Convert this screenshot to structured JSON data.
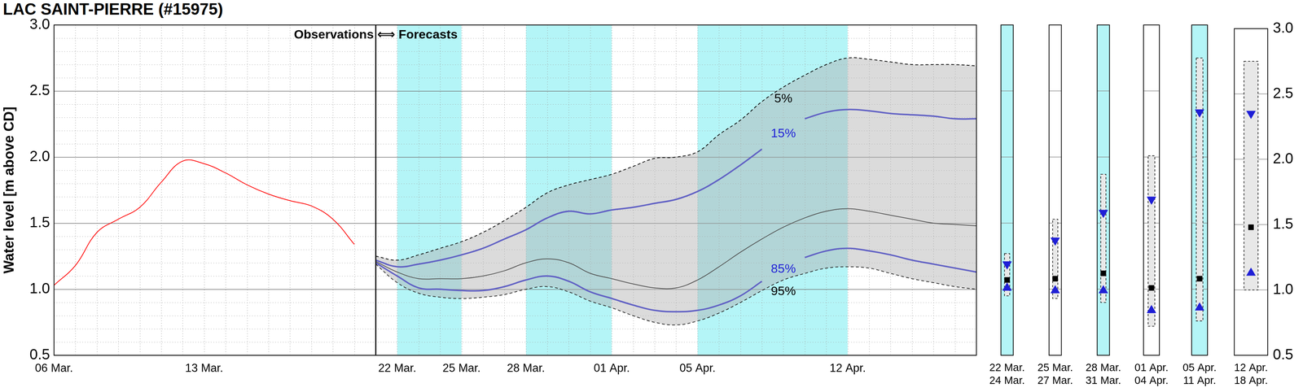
{
  "chart_data": [
    {
      "type": "line",
      "title": "LAC SAINT-PIERRE (#15975)",
      "y_label": "Water level [m above CD]",
      "annotations": [
        "Observations ⟺ Forecasts"
      ],
      "categories": [
        "06 Mar.",
        null,
        null,
        null,
        null,
        null,
        null,
        "13 Mar.",
        null,
        null,
        null,
        null,
        null,
        null,
        null,
        null,
        "22 Mar.",
        null,
        null,
        "25 Mar.",
        null,
        null,
        "28 Mar.",
        null,
        null,
        null,
        "01 Apr.",
        null,
        null,
        null,
        "05 Apr.",
        null,
        null,
        null,
        null,
        null,
        null,
        "12 Apr.",
        null,
        null,
        null,
        null,
        null,
        null
      ],
      "ylim": [
        0.5,
        3
      ],
      "yticks": [
        0.5,
        {
          "value": 1,
          "label": "1.0"
        },
        1.5,
        {
          "value": 2,
          "label": "2.0"
        },
        2.5,
        {
          "value": 3,
          "label": "3.0"
        }
      ],
      "grid": true,
      "series": [
        {
          "color": "#ff0000",
          "line_style": "solid",
          "values": [
            1.03,
            1.18,
            1.43,
            1.53,
            1.62,
            1.81,
            1.97,
            1.95,
            1.88,
            1.79,
            1.72,
            1.67,
            1.63,
            1.53,
            1.34,
            null,
            null,
            null,
            null,
            null,
            null,
            null,
            null,
            null,
            null,
            null,
            null,
            null,
            null,
            null,
            null,
            null,
            null,
            null,
            null,
            null,
            null,
            null,
            null,
            null,
            null,
            null,
            null,
            null
          ]
        },
        {
          "name": "5%",
          "color": "#000000",
          "line_style": "dashed",
          "values": [
            null,
            null,
            null,
            null,
            null,
            null,
            null,
            null,
            null,
            null,
            null,
            null,
            null,
            null,
            null,
            1.25,
            1.22,
            1.26,
            1.31,
            1.36,
            1.43,
            1.52,
            1.62,
            1.73,
            1.79,
            1.83,
            1.87,
            1.93,
            1.99,
            2.0,
            2.04,
            2.17,
            2.28,
            2.42,
            2.53,
            2.62,
            2.7,
            2.75,
            2.74,
            2.72,
            2.7,
            2.7,
            2.7,
            2.69
          ]
        },
        {
          "name": "15%",
          "color": "#1f1fd6",
          "line_style": "solid",
          "values": [
            null,
            null,
            null,
            null,
            null,
            null,
            null,
            null,
            null,
            null,
            null,
            null,
            null,
            null,
            null,
            1.22,
            1.17,
            1.19,
            1.22,
            1.26,
            1.31,
            1.38,
            1.45,
            1.54,
            1.59,
            1.57,
            1.6,
            1.62,
            1.65,
            1.68,
            1.74,
            1.83,
            1.94,
            2.06,
            null,
            2.29,
            2.34,
            2.36,
            2.35,
            2.33,
            2.32,
            2.31,
            2.29,
            2.29
          ]
        },
        {
          "color": "#000000",
          "line_style": "solid",
          "values": [
            null,
            null,
            null,
            null,
            null,
            null,
            null,
            null,
            null,
            null,
            null,
            null,
            null,
            null,
            null,
            1.21,
            1.13,
            1.08,
            1.08,
            1.08,
            1.1,
            1.14,
            1.2,
            1.23,
            1.2,
            1.12,
            1.08,
            1.04,
            1.01,
            1.01,
            1.07,
            1.17,
            1.28,
            1.38,
            1.47,
            1.54,
            1.59,
            1.61,
            1.59,
            1.56,
            1.53,
            1.5,
            1.49,
            1.48
          ]
        },
        {
          "name": "85%",
          "color": "#1f1fd6",
          "line_style": "solid",
          "values": [
            null,
            null,
            null,
            null,
            null,
            null,
            null,
            null,
            null,
            null,
            null,
            null,
            null,
            null,
            null,
            1.2,
            1.1,
            1.01,
            1.0,
            0.99,
            0.99,
            1.02,
            1.07,
            1.1,
            1.06,
            0.98,
            0.93,
            0.88,
            0.84,
            0.83,
            0.84,
            0.88,
            0.95,
            1.06,
            null,
            1.24,
            1.29,
            1.31,
            1.29,
            1.26,
            1.22,
            1.19,
            1.16,
            1.13
          ]
        },
        {
          "name": "95%",
          "color": "#000000",
          "line_style": "dashed",
          "values": [
            null,
            null,
            null,
            null,
            null,
            null,
            null,
            null,
            null,
            null,
            null,
            null,
            null,
            null,
            null,
            1.19,
            1.05,
            0.97,
            0.94,
            0.93,
            0.94,
            0.96,
            1.0,
            1.02,
            0.98,
            0.91,
            0.86,
            0.8,
            0.75,
            0.73,
            0.76,
            0.82,
            0.9,
            0.99,
            1.07,
            1.12,
            1.16,
            1.17,
            1.16,
            1.12,
            1.08,
            1.05,
            1.02,
            1.0
          ]
        }
      ]
    },
    {
      "type": "box",
      "categories": [
        [
          "22 Mar.",
          "24 Mar."
        ],
        [
          "25 Mar.",
          "27 Mar."
        ],
        [
          "28 Mar.",
          "31 Mar."
        ],
        [
          "01 Apr.",
          "04 Apr."
        ],
        [
          "05 Apr.",
          "11 Apr."
        ],
        [
          "12 Apr.",
          "18 Apr."
        ]
      ],
      "colors": [
        "#b4f5f7",
        "#ffffff",
        "#b4f5f7",
        "#ffffff",
        "#b4f5f7",
        "#ffffff"
      ],
      "range_high": [
        1.27,
        1.53,
        1.87,
        2.01,
        2.75,
        2.75
      ],
      "range_low": [
        0.95,
        0.93,
        0.9,
        0.72,
        0.76,
        1.0
      ],
      "series": [
        {
          "color": "#1f1fd6",
          "marker": "triangle-down",
          "values": [
            1.19,
            1.37,
            1.58,
            1.68,
            2.34,
            2.35
          ]
        },
        {
          "color": "#000000",
          "marker": "square",
          "values": [
            1.07,
            1.08,
            1.12,
            1.01,
            1.08,
            1.48
          ]
        },
        {
          "color": "#1f1fd6",
          "marker": "triangle-up",
          "values": [
            1.01,
            0.99,
            0.99,
            0.84,
            0.86,
            1.13
          ]
        }
      ],
      "ylim": [
        0.5,
        3
      ],
      "yticks": [
        0.5,
        {
          "value": 1,
          "label": "1.0"
        },
        1.5,
        {
          "value": 2,
          "label": "2.0"
        },
        2.5,
        {
          "value": 3,
          "label": "3.0"
        }
      ],
      "grid": true
    }
  ]
}
